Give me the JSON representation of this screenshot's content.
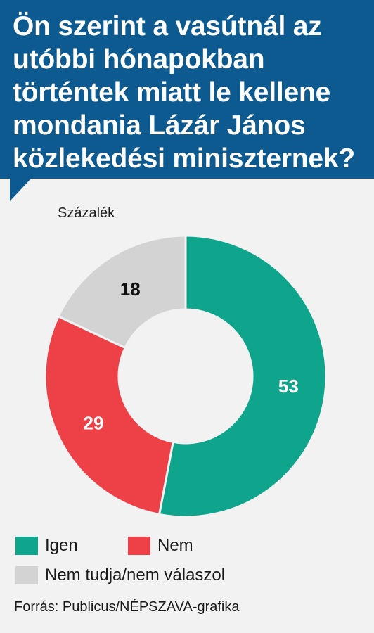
{
  "title": "Ön szerint a vasútnál az utóbbi hónapokban történtek miatt le kellene mondania Lázár János közlekedési miniszternek?",
  "unit_label": "Százalék",
  "source": "Forrás: Publicus/NÉPSZAVA-grafika",
  "colors": {
    "header": "#0d5a91",
    "igen": "#0ea58c",
    "nem": "#ee4047",
    "nem_tudja": "#d3d3d3"
  },
  "chart_data": {
    "type": "pie",
    "variant": "donut",
    "series": [
      {
        "name": "Igen",
        "value": 53,
        "color": "#0ea58c",
        "label_color": "#ffffff"
      },
      {
        "name": "Nem",
        "value": 29,
        "color": "#ee4047",
        "label_color": "#ffffff"
      },
      {
        "name": "Nem tudja/nem válaszol",
        "value": 18,
        "color": "#d3d3d3",
        "label_color": "#111111"
      }
    ]
  },
  "legend": [
    {
      "label": "Igen",
      "color": "#0ea58c"
    },
    {
      "label": "Nem",
      "color": "#ee4047"
    },
    {
      "label": "Nem tudja/nem válaszol",
      "color": "#d3d3d3"
    }
  ]
}
